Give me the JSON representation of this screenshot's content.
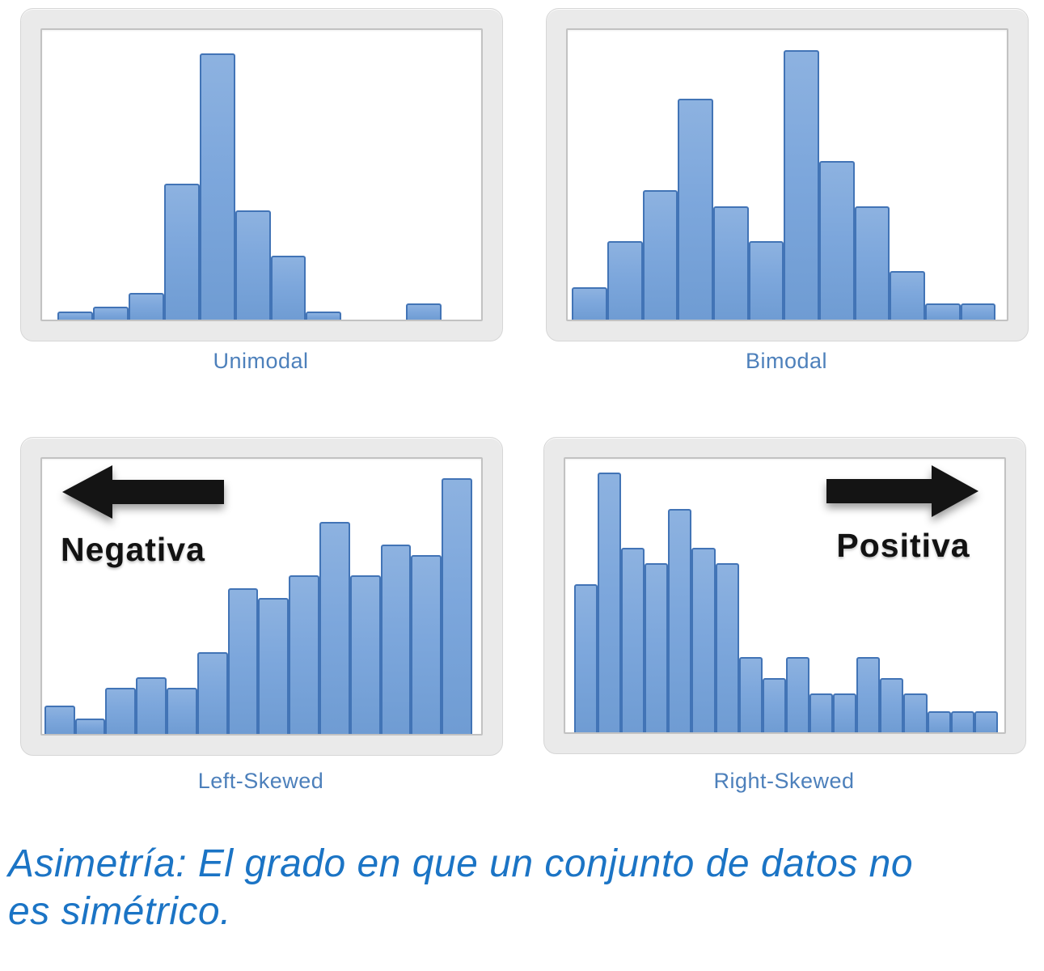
{
  "colors": {
    "bar_fill": "#7da7dc",
    "bar_border": "#4274b6",
    "panel_frame": "#eaeaea",
    "panel_frame_edge": "#d6d6d6",
    "plot_border": "#c2c2c2",
    "caption_text": "#4d80bb",
    "annotation_text": "#121212",
    "arrow_fill": "#141414",
    "footer_text": "#1b74c5"
  },
  "chart_data": [
    {
      "type": "bar",
      "title": "Unimodal",
      "values": [
        3,
        5,
        10,
        51,
        100,
        41,
        24,
        3,
        0,
        0,
        6
      ],
      "n_bins": 11,
      "peak_scale": 0.92,
      "xlabel": "",
      "ylabel": "",
      "grid": false,
      "legend": false
    },
    {
      "type": "bar",
      "title": "Bimodal",
      "values": [
        12,
        29,
        48,
        82,
        42,
        29,
        100,
        59,
        42,
        18,
        6,
        6
      ],
      "n_bins": 12,
      "peak_scale": 0.93,
      "xlabel": "",
      "ylabel": "",
      "grid": false,
      "legend": false
    },
    {
      "type": "bar",
      "title": "Left-Skewed",
      "values": [
        11,
        6,
        18,
        22,
        18,
        32,
        57,
        53,
        62,
        83,
        62,
        74,
        70,
        100
      ],
      "n_bins": 14,
      "peak_scale": 0.93,
      "annotation": "Negativa",
      "arrow_direction": "left",
      "xlabel": "",
      "ylabel": "",
      "grid": false,
      "legend": false
    },
    {
      "type": "bar",
      "title": "Right-Skewed",
      "values": [
        57,
        100,
        71,
        65,
        86,
        71,
        65,
        29,
        21,
        29,
        15,
        15,
        29,
        21,
        15,
        8,
        8,
        8
      ],
      "n_bins": 18,
      "peak_scale": 0.95,
      "annotation": "Positiva",
      "arrow_direction": "right",
      "xlabel": "",
      "ylabel": "",
      "grid": false,
      "legend": false
    }
  ],
  "footer": {
    "lines": [
      "Asimetría: El grado en que un conjunto de datos no",
      "es simétrico."
    ]
  }
}
